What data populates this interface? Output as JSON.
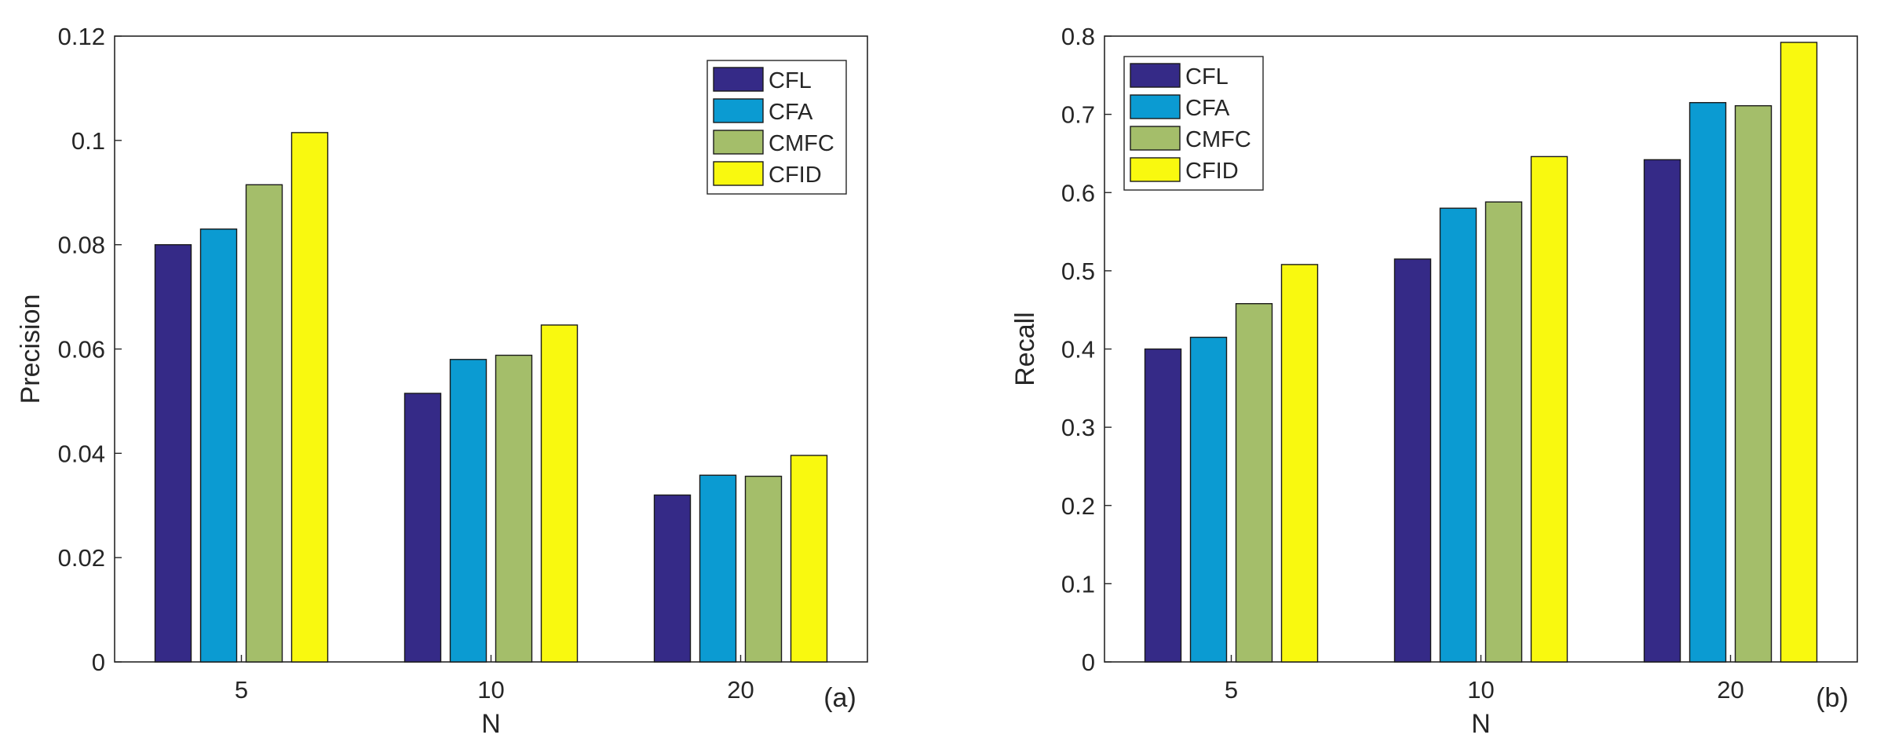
{
  "chart_data": [
    {
      "type": "bar",
      "panel_label": "(a)",
      "xlabel": "N",
      "ylabel": "Precision",
      "categories": [
        "5",
        "10",
        "20"
      ],
      "ylim": [
        0,
        0.12
      ],
      "yticks": [
        "0",
        "0.02",
        "0.04",
        "0.06",
        "0.08",
        "0.1",
        "0.12"
      ],
      "legend_position": "top-right",
      "series": [
        {
          "name": "CFL",
          "color": "#352a87",
          "values": [
            0.08,
            0.0515,
            0.032
          ]
        },
        {
          "name": "CFA",
          "color": "#0b9bd2",
          "values": [
            0.083,
            0.058,
            0.0358
          ]
        },
        {
          "name": "CMFC",
          "color": "#a4be6a",
          "values": [
            0.0915,
            0.0588,
            0.0356
          ]
        },
        {
          "name": "CFID",
          "color": "#f9f90f",
          "values": [
            0.1015,
            0.0646,
            0.0396
          ]
        }
      ]
    },
    {
      "type": "bar",
      "panel_label": "(b)",
      "xlabel": "N",
      "ylabel": "Recall",
      "categories": [
        "5",
        "10",
        "20"
      ],
      "ylim": [
        0,
        0.8
      ],
      "yticks": [
        "0",
        "0.1",
        "0.2",
        "0.3",
        "0.4",
        "0.5",
        "0.6",
        "0.7",
        "0.8"
      ],
      "legend_position": "top-left",
      "series": [
        {
          "name": "CFL",
          "color": "#352a87",
          "values": [
            0.4,
            0.515,
            0.642
          ]
        },
        {
          "name": "CFA",
          "color": "#0b9bd2",
          "values": [
            0.415,
            0.58,
            0.715
          ]
        },
        {
          "name": "CMFC",
          "color": "#a4be6a",
          "values": [
            0.458,
            0.588,
            0.711
          ]
        },
        {
          "name": "CFID",
          "color": "#f9f90f",
          "values": [
            0.508,
            0.646,
            0.792
          ]
        }
      ]
    }
  ]
}
